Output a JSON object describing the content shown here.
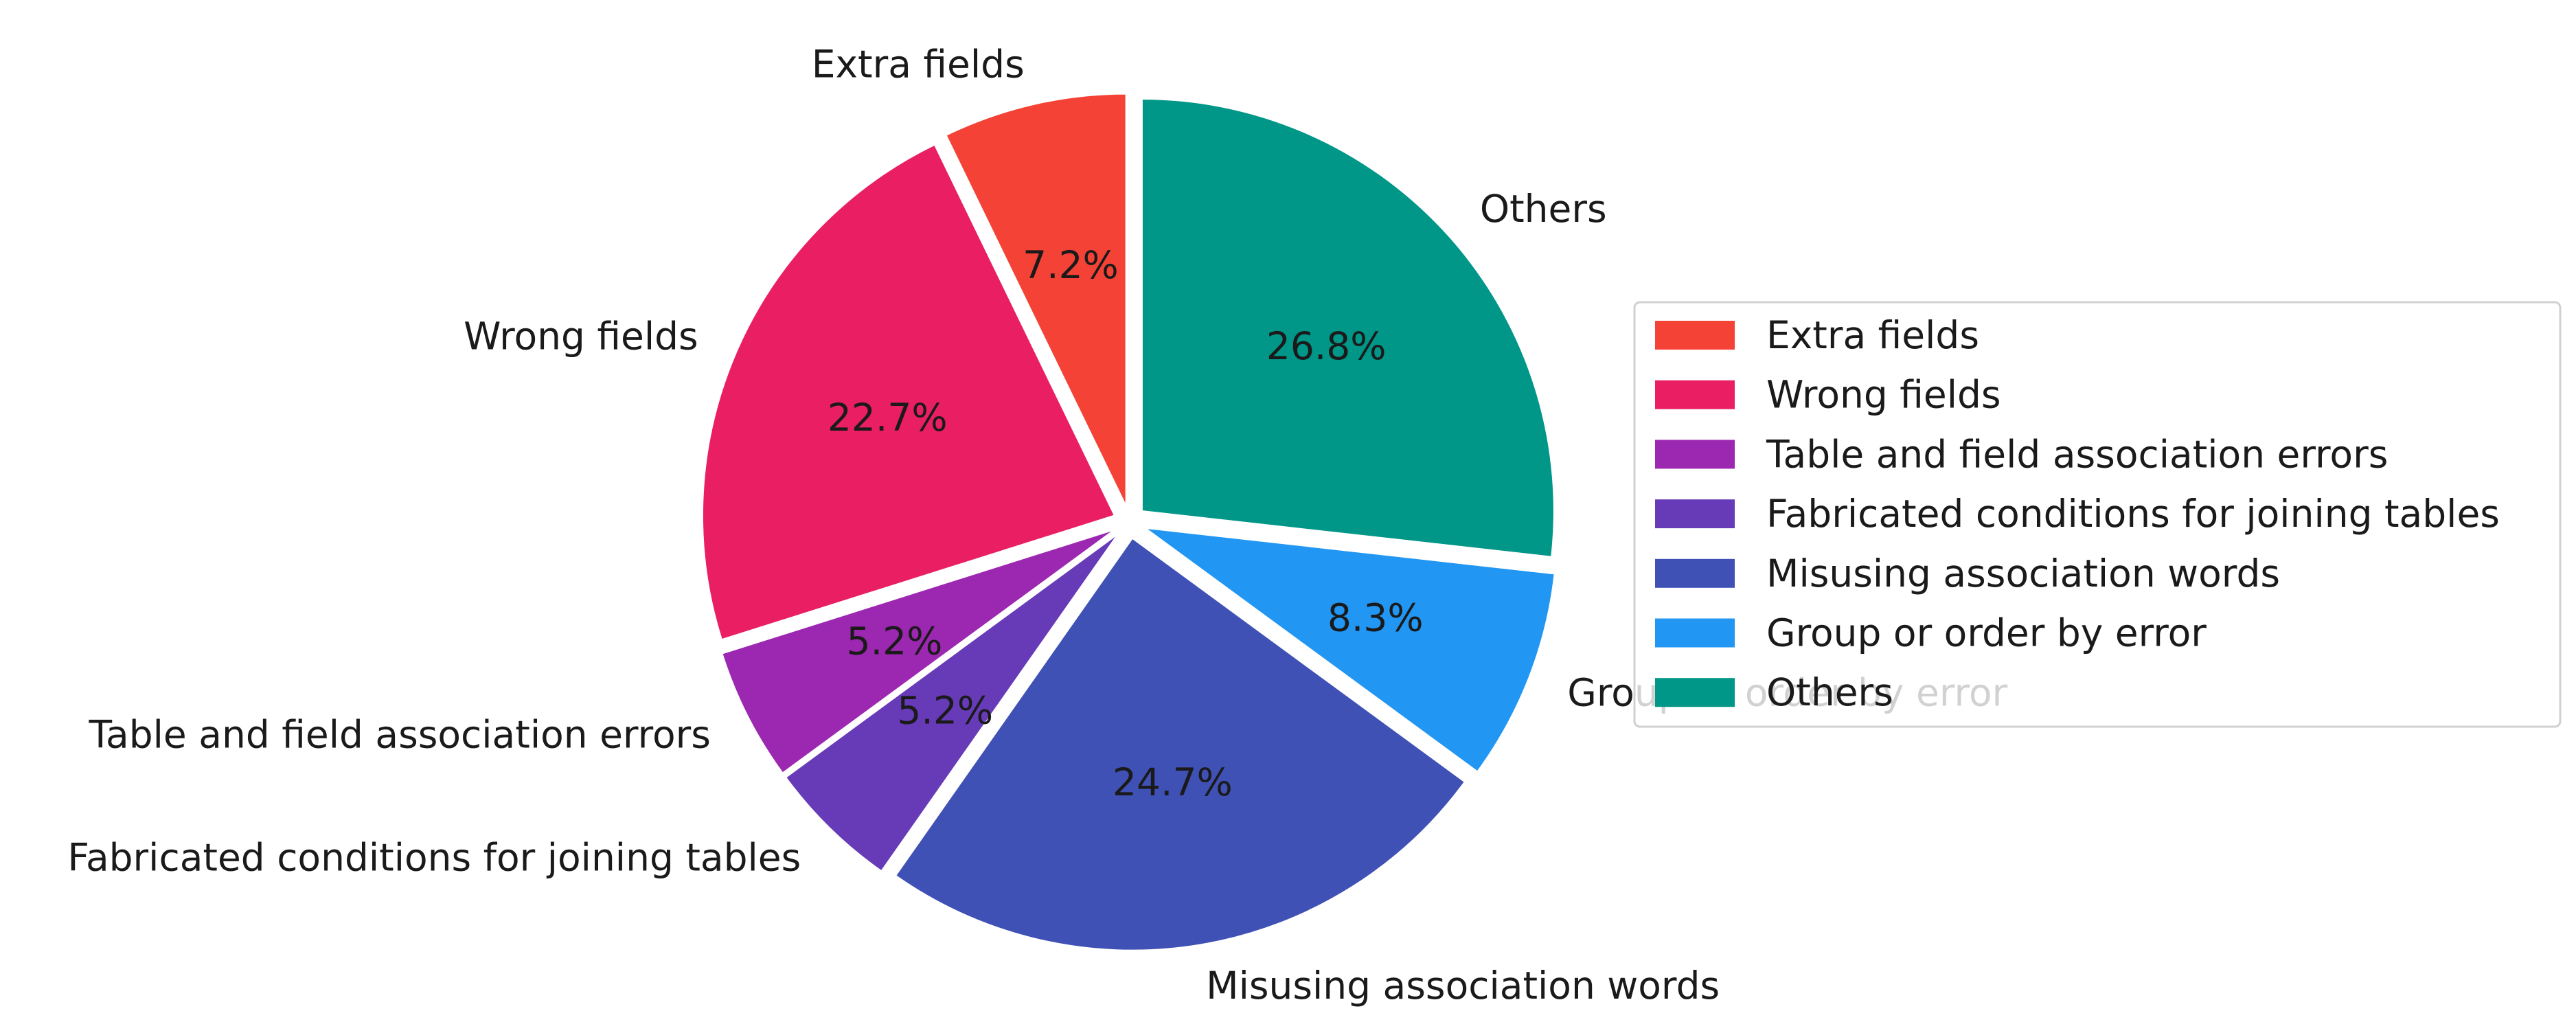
{
  "chart_data": {
    "type": "pie",
    "title": "",
    "start_angle": 90,
    "direction": "counterclockwise",
    "legend_position": "center-right",
    "slices": [
      {
        "label": "Extra fields",
        "value": 7.2,
        "pct_label": "7.2%",
        "color": "#F44336"
      },
      {
        "label": "Wrong fields",
        "value": 22.7,
        "pct_label": "22.7%",
        "color": "#E91E63"
      },
      {
        "label": "Table and field association errors",
        "value": 5.2,
        "pct_label": "5.2%",
        "color": "#9C27B0"
      },
      {
        "label": "Fabricated conditions for joining tables",
        "value": 5.2,
        "pct_label": "5.2%",
        "color": "#673AB7"
      },
      {
        "label": "Misusing association words",
        "value": 24.7,
        "pct_label": "24.7%",
        "color": "#3F51B5"
      },
      {
        "label": "Group or order by error",
        "value": 8.3,
        "pct_label": "8.3%",
        "color": "#2196F3"
      },
      {
        "label": "Others",
        "value": 26.8,
        "pct_label": "26.8%",
        "color": "#009688"
      }
    ]
  }
}
